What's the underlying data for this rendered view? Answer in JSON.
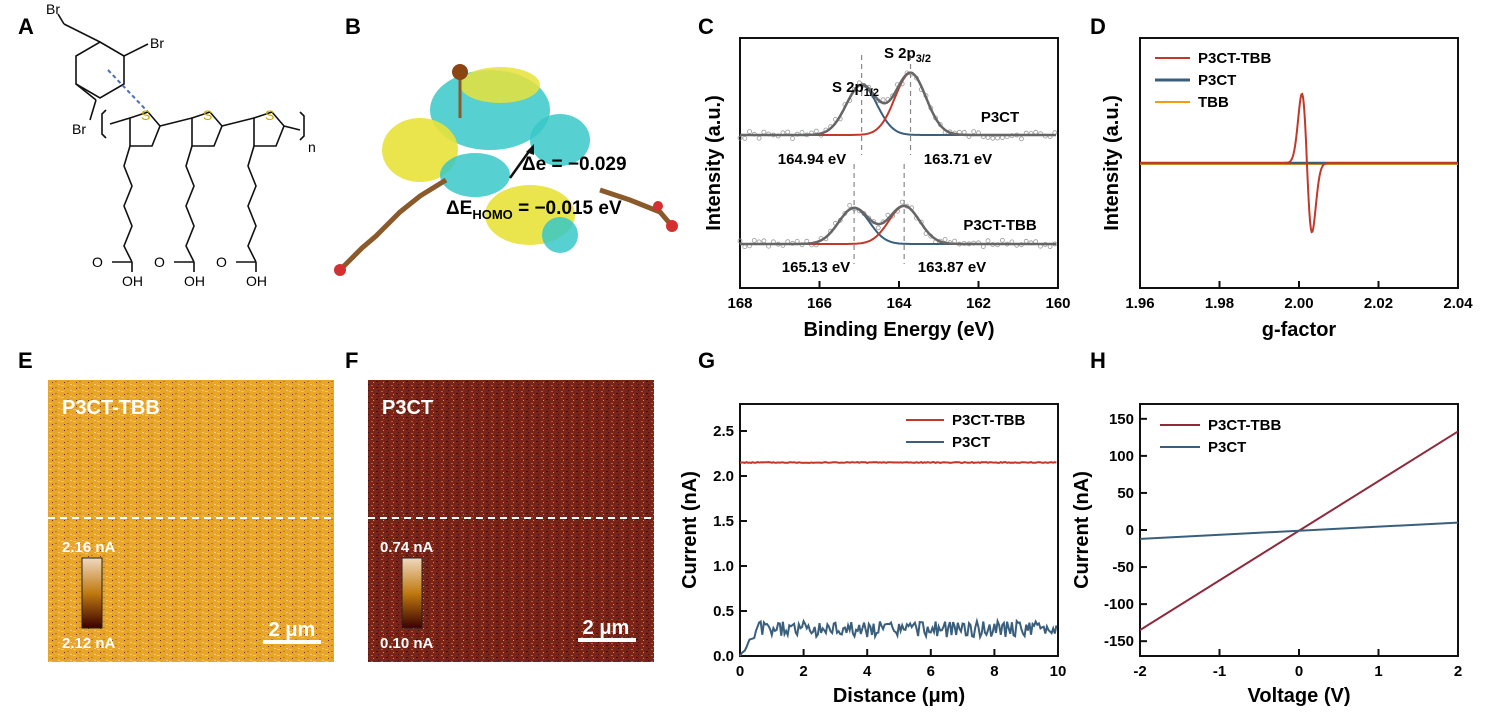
{
  "panels": {
    "A": {
      "label": "A",
      "structure_text": [
        "Br",
        "Br",
        "Br",
        "S",
        "S",
        "S",
        "n",
        "O",
        "OH",
        "O",
        "OH",
        "O",
        "OH"
      ]
    },
    "B": {
      "label": "B",
      "delta_e": "Δe = −0.029",
      "delta_ehomo_prefix": "ΔE",
      "delta_ehomo_sub": "HOMO",
      "delta_ehomo_suffix": " = −0.015 eV"
    },
    "E": {
      "label": "E",
      "sample": "P3CT-TBB",
      "scale_max": "2.16 nA",
      "scale_min": "2.12 nA",
      "scalebar": "2 μm"
    },
    "F": {
      "label": "F",
      "sample": "P3CT",
      "scale_max": "0.74 nA",
      "scale_min": "0.10 nA",
      "scalebar": "2 μm"
    }
  },
  "colors": {
    "red": "#c0392b",
    "blue": "#3a5f7d",
    "orange": "#f39c12",
    "fit_gray": "#666666",
    "dark_red": "#8e2a3c"
  },
  "chart_data": [
    {
      "panel": "C",
      "type": "line",
      "xlabel": "Binding Energy (eV)",
      "ylabel": "Intensity (a.u.)",
      "xlim": [
        168,
        160
      ],
      "xticks": [
        168,
        166,
        164,
        162,
        160
      ],
      "peak_labels": {
        "s2p12": "S 2p",
        "s2p12_sub": "1/2",
        "s2p32": "S 2p",
        "s2p32_sub": "3/2"
      },
      "series": [
        {
          "name": "P3CT",
          "peaks": [
            164.94,
            163.71
          ],
          "peak_labels": [
            "164.94 eV",
            "163.71 eV"
          ]
        },
        {
          "name": "P3CT-TBB",
          "peaks": [
            165.13,
            163.87
          ],
          "peak_labels": [
            "165.13 eV",
            "163.87 eV"
          ]
        }
      ]
    },
    {
      "panel": "D",
      "type": "line",
      "xlabel": "g-factor",
      "ylabel": "Intensity (a.u.)",
      "xlim": [
        1.96,
        2.04
      ],
      "xticks": [
        "1.96",
        "1.98",
        "2.00",
        "2.02",
        "2.04"
      ],
      "legend": [
        "P3CT-TBB",
        "P3CT",
        "TBB"
      ],
      "signal_center_g": 2.002
    },
    {
      "panel": "G",
      "type": "line",
      "xlabel": "Distance (μm)",
      "ylabel": "Current (nA)",
      "xlim": [
        0,
        10
      ],
      "ylim": [
        0,
        2.8
      ],
      "xticks": [
        "0",
        "2",
        "4",
        "6",
        "8",
        "10"
      ],
      "yticks": [
        "0.0",
        "0.5",
        "1.0",
        "1.5",
        "2.0",
        "2.5"
      ],
      "series": [
        {
          "name": "P3CT-TBB",
          "mean": 2.15
        },
        {
          "name": "P3CT",
          "mean": 0.3
        }
      ]
    },
    {
      "panel": "H",
      "type": "line",
      "xlabel": "Voltage (V)",
      "ylabel": "Current (nA)",
      "xlim": [
        -2,
        2
      ],
      "ylim": [
        -170,
        170
      ],
      "xticks": [
        "-2",
        "-1",
        "0",
        "1",
        "2"
      ],
      "yticks": [
        "150",
        "100",
        "50",
        "0",
        "-50",
        "-100",
        "-150"
      ],
      "series": [
        {
          "name": "P3CT-TBB",
          "x": [
            -2,
            2
          ],
          "y": [
            -135,
            133
          ]
        },
        {
          "name": "P3CT",
          "x": [
            -2,
            2
          ],
          "y": [
            -12,
            10
          ]
        }
      ]
    }
  ]
}
